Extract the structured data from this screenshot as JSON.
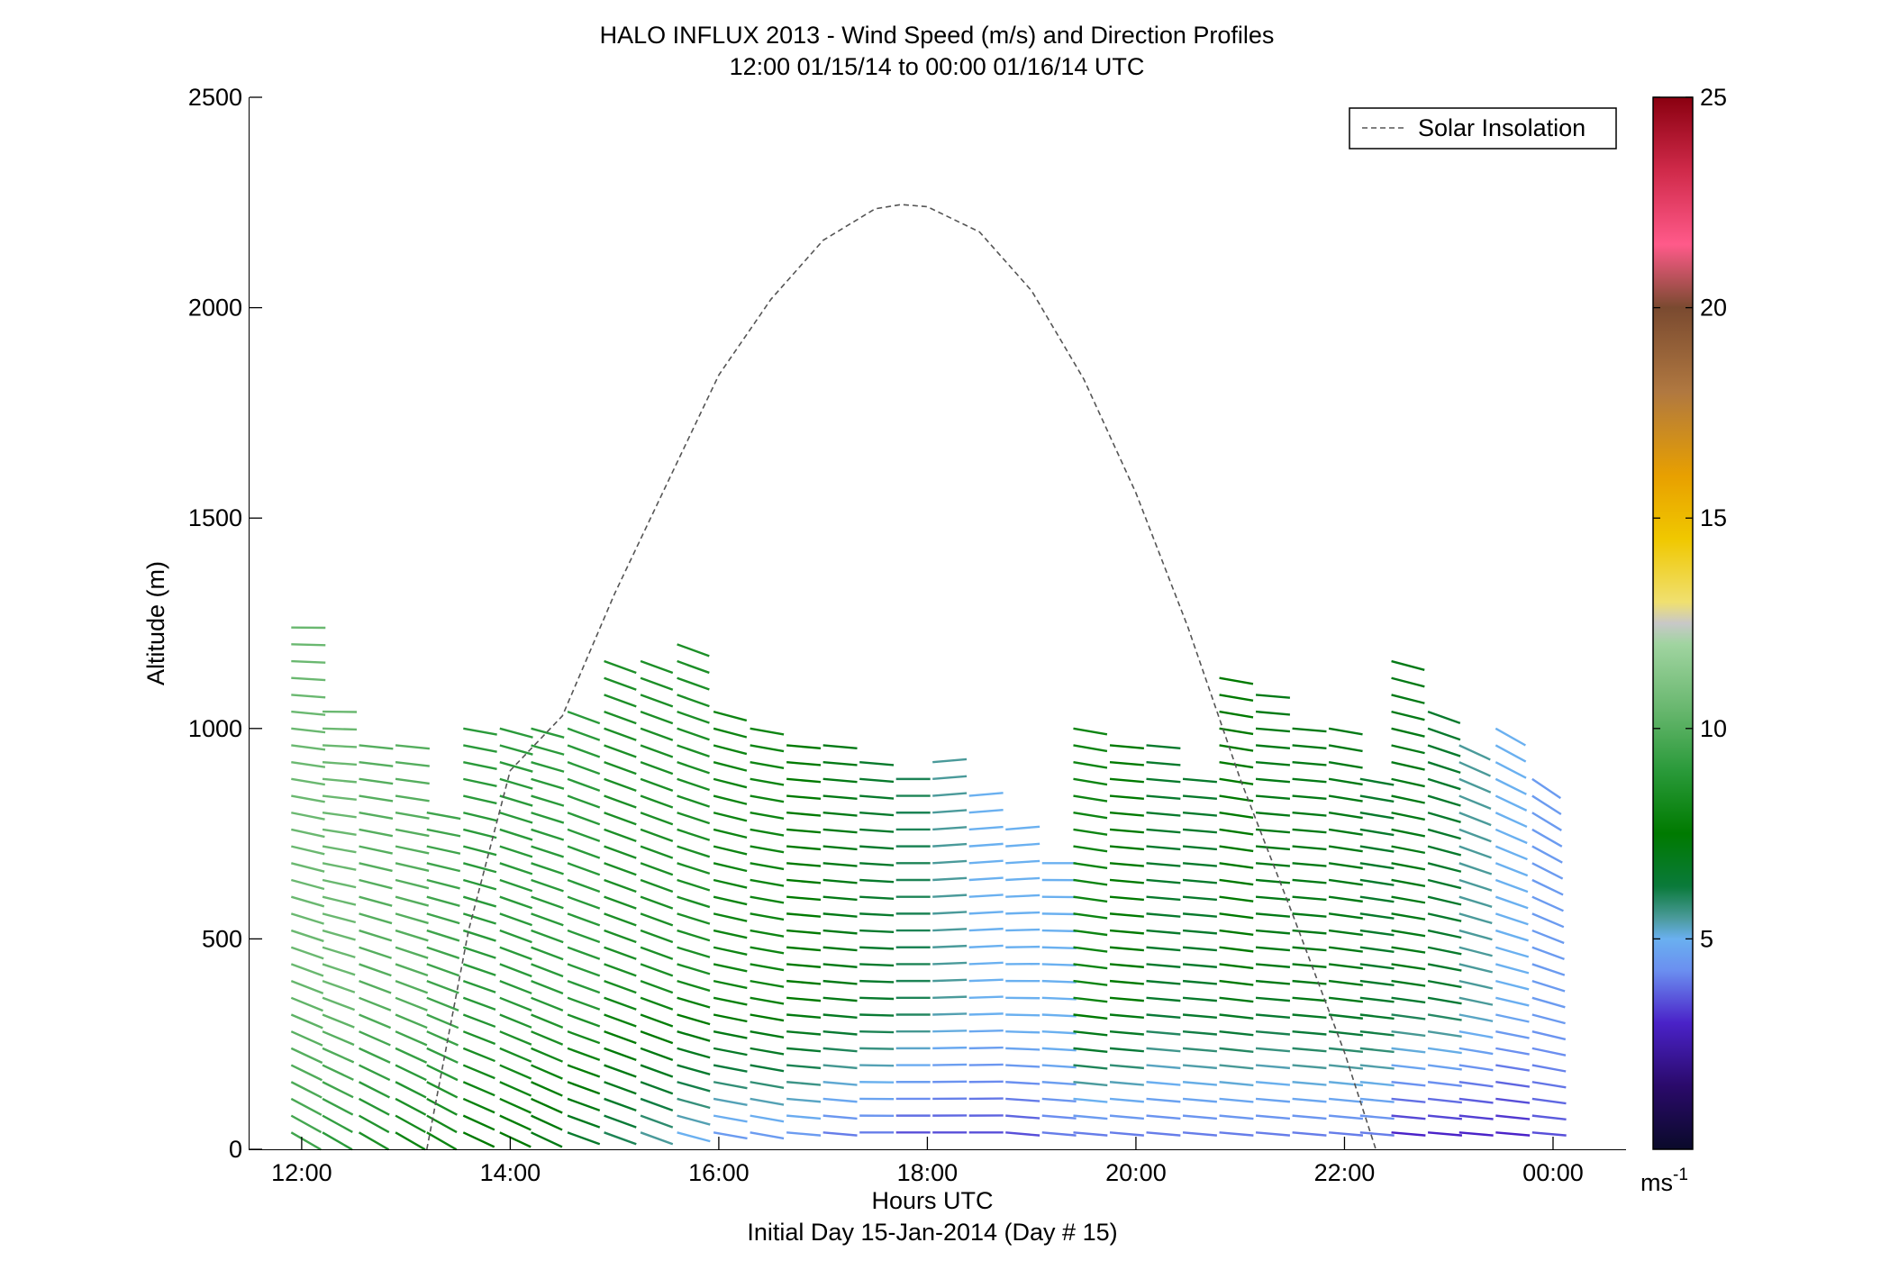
{
  "chart_data": {
    "type": "wind_barb_profile",
    "title": "HALO INFLUX 2013 - Wind Speed (m/s) and Direction Profiles",
    "subtitle": "12:00 01/15/14 to 00:00 01/16/14  UTC",
    "xlabel": "Hours UTC",
    "xlabel2": "Initial Day 15-Jan-2014 (Day # 15)",
    "ylabel": "Altitude (m)",
    "xlim": [
      11.5,
      24.7
    ],
    "ylim": [
      0,
      2500
    ],
    "xticks": [
      12,
      14,
      16,
      18,
      20,
      22,
      24
    ],
    "xtick_labels": [
      "12:00",
      "14:00",
      "16:00",
      "18:00",
      "20:00",
      "22:00",
      "00:00"
    ],
    "yticks": [
      0,
      500,
      1000,
      1500,
      2000,
      2500
    ],
    "ytick_labels": [
      "0",
      "500",
      "1000",
      "1500",
      "2000",
      "2500"
    ],
    "legend": {
      "label": "Solar Insolation",
      "position": "top-right"
    },
    "colorbar": {
      "range": [
        0,
        25
      ],
      "ticks": [
        5,
        10,
        15,
        20,
        25
      ],
      "tick_labels": [
        "5",
        "10",
        "15",
        "20",
        "25"
      ],
      "unit_base": "ms",
      "unit_exp": "-1"
    },
    "solar_insolation_curve": {
      "style": "dashed",
      "color": "#555555",
      "points": [
        [
          13.2,
          0
        ],
        [
          13.6,
          520
        ],
        [
          14.0,
          900
        ],
        [
          14.5,
          1030
        ],
        [
          15.0,
          1320
        ],
        [
          15.5,
          1580
        ],
        [
          16.0,
          1840
        ],
        [
          16.5,
          2020
        ],
        [
          17.0,
          2160
        ],
        [
          17.5,
          2235
        ],
        [
          17.75,
          2245
        ],
        [
          18.0,
          2240
        ],
        [
          18.5,
          2180
        ],
        [
          19.0,
          2040
        ],
        [
          19.5,
          1830
        ],
        [
          20.0,
          1560
        ],
        [
          20.5,
          1240
        ],
        [
          21.0,
          880
        ],
        [
          21.5,
          560
        ],
        [
          22.0,
          230
        ],
        [
          22.3,
          0
        ]
      ]
    },
    "profiles": [
      {
        "time": 11.9,
        "top": 1260,
        "speed_low": 9.5,
        "speed_high": 10.5,
        "dir_low": 300,
        "dir_high": 270
      },
      {
        "time": 12.2,
        "top": 1060,
        "speed_low": 9.0,
        "speed_high": 10.5,
        "dir_low": 300,
        "dir_high": 270
      },
      {
        "time": 12.55,
        "top": 990,
        "speed_low": 8.5,
        "speed_high": 10.0,
        "dir_low": 300,
        "dir_high": 275
      },
      {
        "time": 12.9,
        "top": 980,
        "speed_low": 8.0,
        "speed_high": 10.0,
        "dir_low": 300,
        "dir_high": 275
      },
      {
        "time": 13.2,
        "top": 810,
        "speed_low": 8.0,
        "speed_high": 9.5,
        "dir_low": 300,
        "dir_high": 280
      },
      {
        "time": 13.55,
        "top": 1020,
        "speed_low": 7.5,
        "speed_high": 9.0,
        "dir_low": 295,
        "dir_high": 280
      },
      {
        "time": 13.9,
        "top": 1020,
        "speed_low": 7.5,
        "speed_high": 9.0,
        "dir_low": 295,
        "dir_high": 285
      },
      {
        "time": 14.2,
        "top": 1030,
        "speed_low": 7.0,
        "speed_high": 9.0,
        "dir_low": 295,
        "dir_high": 285
      },
      {
        "time": 14.55,
        "top": 1050,
        "speed_low": 6.5,
        "speed_high": 9.0,
        "dir_low": 290,
        "dir_high": 290
      },
      {
        "time": 14.9,
        "top": 1170,
        "speed_low": 6.0,
        "speed_high": 8.5,
        "dir_low": 290,
        "dir_high": 290
      },
      {
        "time": 15.25,
        "top": 1160,
        "speed_low": 5.5,
        "speed_high": 8.5,
        "dir_low": 290,
        "dir_high": 290
      },
      {
        "time": 15.6,
        "top": 1200,
        "speed_low": 5.0,
        "speed_high": 8.5,
        "dir_low": 285,
        "dir_high": 290
      },
      {
        "time": 15.95,
        "top": 1040,
        "speed_low": 4.5,
        "speed_high": 8.0,
        "dir_low": 280,
        "dir_high": 285
      },
      {
        "time": 16.3,
        "top": 1030,
        "speed_low": 4.5,
        "speed_high": 8.0,
        "dir_low": 280,
        "dir_high": 280
      },
      {
        "time": 16.65,
        "top": 990,
        "speed_low": 4.5,
        "speed_high": 7.5,
        "dir_low": 275,
        "dir_high": 275
      },
      {
        "time": 17.0,
        "top": 960,
        "speed_low": 4.0,
        "speed_high": 7.0,
        "dir_low": 275,
        "dir_high": 275
      },
      {
        "time": 17.35,
        "top": 930,
        "speed_low": 4.0,
        "speed_high": 6.5,
        "dir_low": 270,
        "dir_high": 275
      },
      {
        "time": 17.7,
        "top": 910,
        "speed_low": 3.5,
        "speed_high": 6.0,
        "dir_low": 270,
        "dir_high": 270
      },
      {
        "time": 18.05,
        "top": 940,
        "speed_low": 3.5,
        "speed_high": 5.5,
        "dir_low": 270,
        "dir_high": 265
      },
      {
        "time": 18.4,
        "top": 860,
        "speed_low": 3.5,
        "speed_high": 5.0,
        "dir_low": 270,
        "dir_high": 265
      },
      {
        "time": 18.75,
        "top": 780,
        "speed_low": 3.5,
        "speed_high": 5.0,
        "dir_low": 275,
        "dir_high": 265
      },
      {
        "time": 19.1,
        "top": 680,
        "speed_low": 4.0,
        "speed_high": 5.0,
        "dir_low": 275,
        "dir_high": 270
      },
      {
        "time": 19.4,
        "top": 1010,
        "speed_low": 4.0,
        "speed_high": 8.0,
        "dir_low": 275,
        "dir_high": 280
      },
      {
        "time": 19.75,
        "top": 990,
        "speed_low": 4.0,
        "speed_high": 7.5,
        "dir_low": 275,
        "dir_high": 275
      },
      {
        "time": 20.1,
        "top": 980,
        "speed_low": 4.0,
        "speed_high": 6.5,
        "dir_low": 275,
        "dir_high": 275
      },
      {
        "time": 20.45,
        "top": 890,
        "speed_low": 4.0,
        "speed_high": 6.5,
        "dir_low": 275,
        "dir_high": 275
      },
      {
        "time": 20.8,
        "top": 1140,
        "speed_low": 4.0,
        "speed_high": 7.5,
        "dir_low": 275,
        "dir_high": 280
      },
      {
        "time": 21.15,
        "top": 1100,
        "speed_low": 4.0,
        "speed_high": 7.0,
        "dir_low": 275,
        "dir_high": 275
      },
      {
        "time": 21.5,
        "top": 1000,
        "speed_low": 4.0,
        "speed_high": 7.0,
        "dir_low": 275,
        "dir_high": 275
      },
      {
        "time": 21.85,
        "top": 1020,
        "speed_low": 4.0,
        "speed_high": 7.0,
        "dir_low": 275,
        "dir_high": 280
      },
      {
        "time": 22.15,
        "top": 890,
        "speed_low": 4.0,
        "speed_high": 6.5,
        "dir_low": 275,
        "dir_high": 280
      },
      {
        "time": 22.45,
        "top": 1170,
        "speed_low": 3.0,
        "speed_high": 7.0,
        "dir_low": 275,
        "dir_high": 285
      },
      {
        "time": 22.8,
        "top": 1060,
        "speed_low": 3.0,
        "speed_high": 6.5,
        "dir_low": 275,
        "dir_high": 290
      },
      {
        "time": 23.1,
        "top": 970,
        "speed_low": 3.0,
        "speed_high": 5.5,
        "dir_low": 275,
        "dir_high": 295
      },
      {
        "time": 23.45,
        "top": 1020,
        "speed_low": 3.0,
        "speed_high": 5.0,
        "dir_low": 275,
        "dir_high": 300
      },
      {
        "time": 23.8,
        "top": 910,
        "speed_low": 3.5,
        "speed_high": 4.5,
        "dir_low": 275,
        "dir_high": 305
      }
    ]
  }
}
